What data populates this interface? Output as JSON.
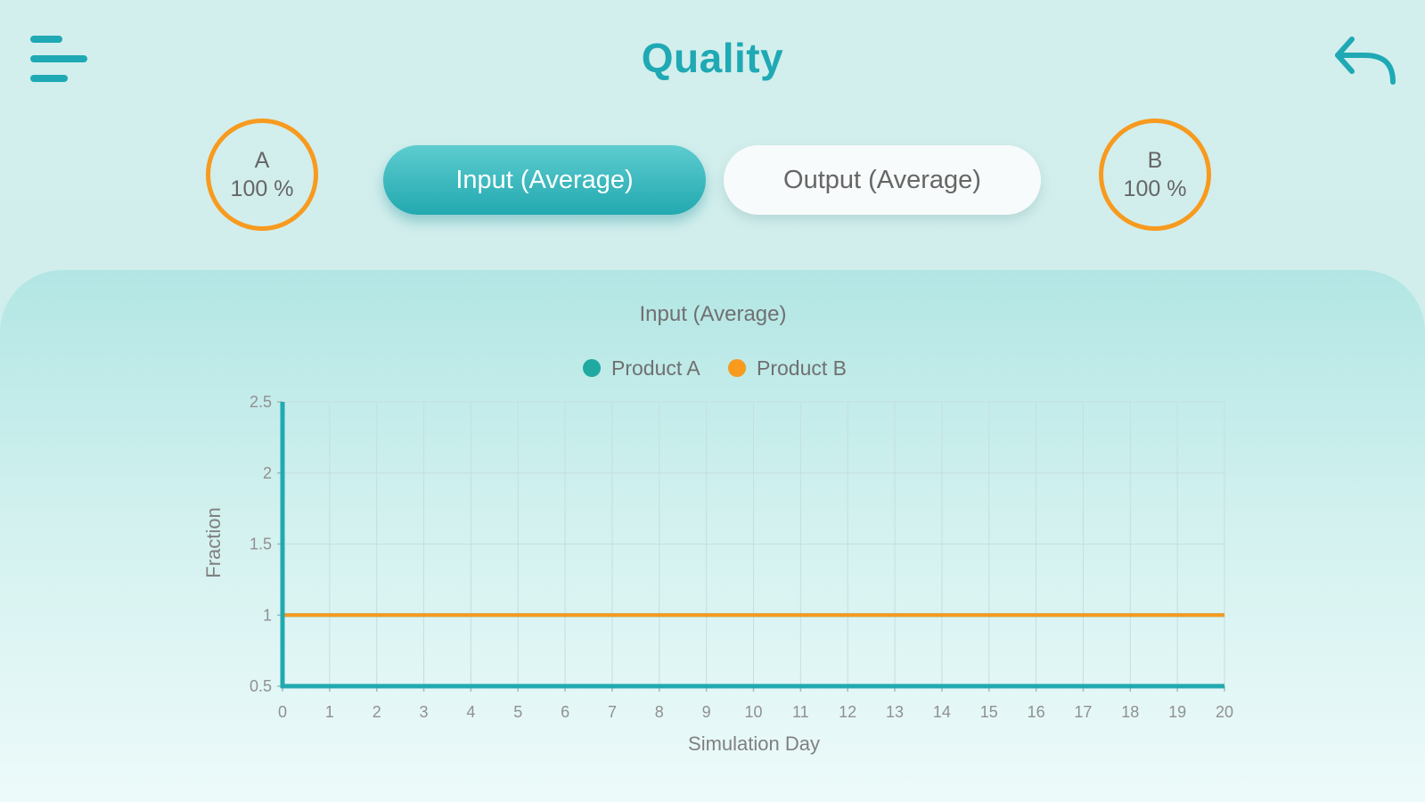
{
  "header": {
    "title": "Quality"
  },
  "badges": {
    "a": {
      "label": "A",
      "value": "100 %"
    },
    "b": {
      "label": "B",
      "value": "100 %"
    }
  },
  "tabs": {
    "input": "Input (Average)",
    "output": "Output (Average)",
    "active": "input"
  },
  "colors": {
    "accent": "#1fa9b4",
    "product_a": "#1fa9a0",
    "product_b": "#f79a1e"
  },
  "chart_data": {
    "type": "line",
    "title": "Input (Average)",
    "xlabel": "Simulation Day",
    "ylabel": "Fraction",
    "x": [
      0,
      1,
      2,
      3,
      4,
      5,
      6,
      7,
      8,
      9,
      10,
      11,
      12,
      13,
      14,
      15,
      16,
      17,
      18,
      19,
      20
    ],
    "xlim": [
      0,
      20
    ],
    "ylim": [
      0.5,
      2.5
    ],
    "yticks": [
      "0.5",
      "1",
      "1.5",
      "2",
      "2.5"
    ],
    "xticks": [
      "0",
      "1",
      "2",
      "3",
      "4",
      "5",
      "6",
      "7",
      "8",
      "9",
      "10",
      "11",
      "12",
      "13",
      "14",
      "15",
      "16",
      "17",
      "18",
      "19",
      "20"
    ],
    "grid": true,
    "legend_position": "top-center",
    "series": [
      {
        "name": "Product A",
        "color": "#1fa9a0",
        "values": [
          1,
          1,
          1,
          1,
          1,
          1,
          1,
          1,
          1,
          1,
          1,
          1,
          1,
          1,
          1,
          1,
          1,
          1,
          1,
          1,
          1
        ]
      },
      {
        "name": "Product B",
        "color": "#f79a1e",
        "values": [
          1,
          1,
          1,
          1,
          1,
          1,
          1,
          1,
          1,
          1,
          1,
          1,
          1,
          1,
          1,
          1,
          1,
          1,
          1,
          1,
          1
        ]
      }
    ]
  }
}
